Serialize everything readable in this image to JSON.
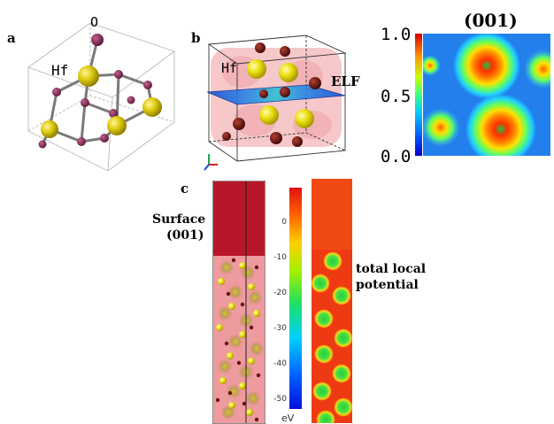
{
  "panel_a": {
    "label": "a",
    "atom_o": "O",
    "atom_hf": "Hf"
  },
  "panel_b": {
    "label": "b",
    "atom_hf": "Hf",
    "plane_label": "ELF"
  },
  "elf_map": {
    "title": "(001)",
    "tick_top": "1.0",
    "tick_mid": "0.5",
    "tick_bot": "0.0"
  },
  "panel_c": {
    "label": "c",
    "surface_line1": "Surface",
    "surface_line2": "(001)",
    "potential_line1": "total local",
    "potential_line2": "potential",
    "colorbar_ticks": [
      "0",
      "-10",
      "-20",
      "-30",
      "-40",
      "-50"
    ],
    "colorbar_unit": "eV"
  },
  "colors": {
    "hf_atom": "#d4c000",
    "o_atom": "#8b2a5a",
    "o_atom_b": "#6a1210",
    "surface_red": "#b5182a",
    "potential_red": "#ee3a12",
    "potential_green": "#3ad34a"
  }
}
